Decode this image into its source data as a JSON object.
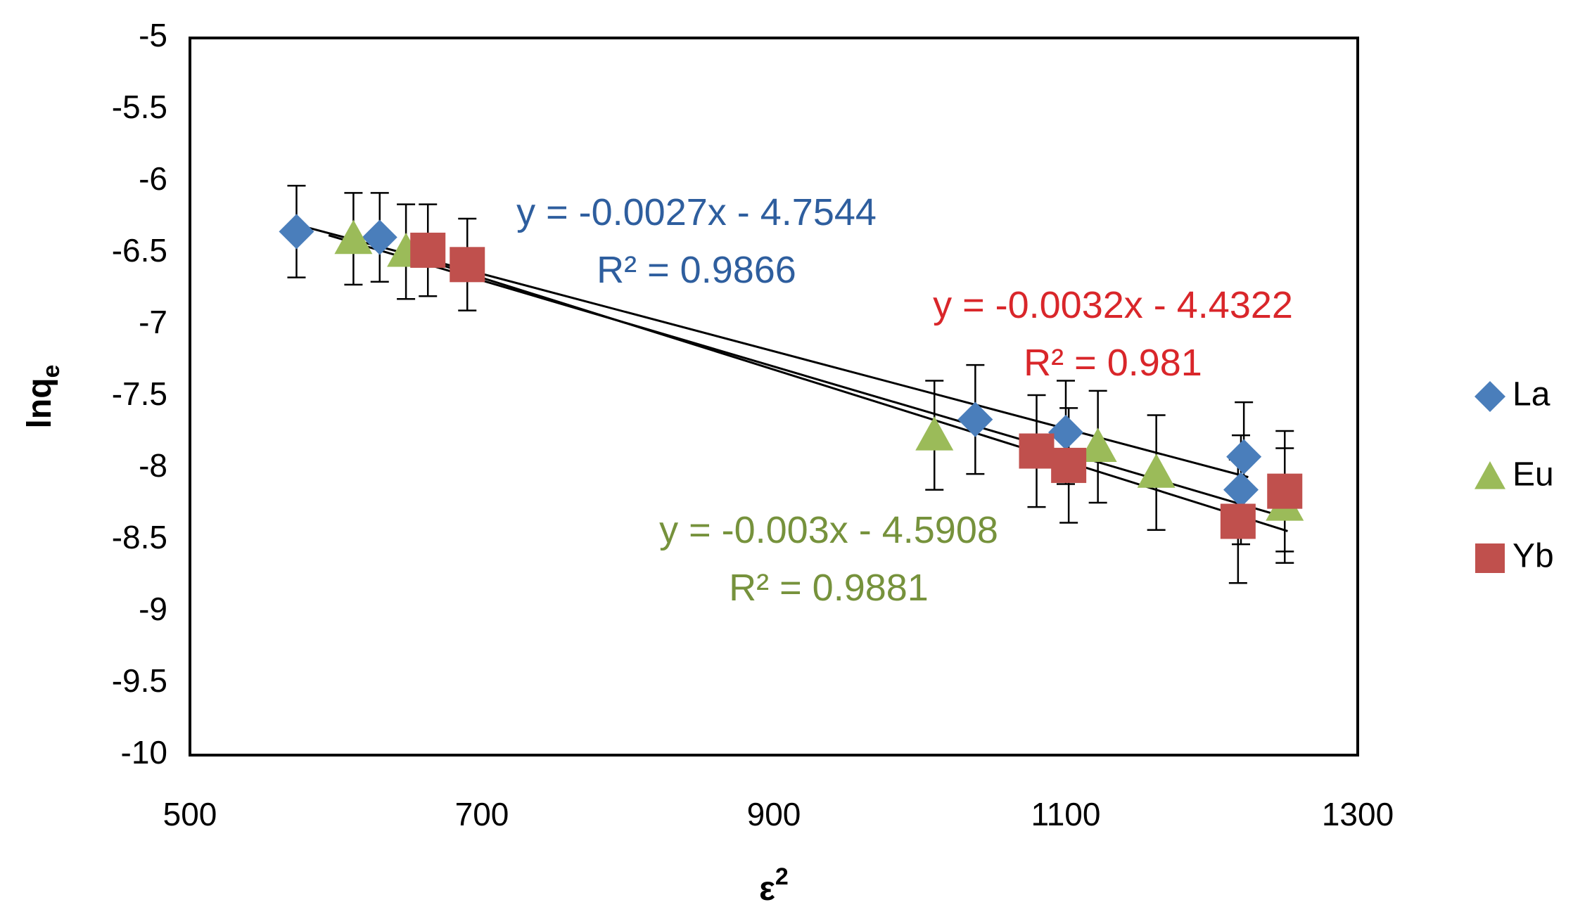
{
  "chart_data": {
    "type": "scatter",
    "title": "",
    "xlabel": "ε",
    "xlabel_sup": "2",
    "ylabel": "lnq",
    "ylabel_sub": "e",
    "xlim": [
      500,
      1300
    ],
    "ylim": [
      -10,
      -5
    ],
    "x_ticks": [
      500,
      700,
      900,
      1100,
      1300
    ],
    "y_ticks": [
      -5,
      -5.5,
      -6,
      -6.5,
      -7,
      -7.5,
      -8,
      -8.5,
      -9,
      -9.5,
      -10
    ],
    "x_tick_labels": [
      "500",
      "700",
      "900",
      "1100",
      "1300"
    ],
    "y_tick_labels": [
      "-5",
      "-5.5",
      "-6",
      "-6.5",
      "-7",
      "-7.5",
      "-8",
      "-8.5",
      "-9",
      "-9.5",
      "-10"
    ],
    "series": [
      {
        "name": "La",
        "color": "#4a7ebb",
        "marker": "diamond",
        "x": [
          573,
          630,
          1038,
          1100,
          1222,
          1220
        ],
        "y": [
          -6.35,
          -6.39,
          -7.66,
          -7.75,
          -7.92,
          -8.15
        ],
        "error": [
          0.32,
          0.31,
          0.38,
          0.36,
          0.38,
          0.38
        ],
        "fit": {
          "slope": -0.0027,
          "intercept": -4.7544,
          "x_range": [
            575,
            1225
          ]
        },
        "equation": "y = -0.0027x - 4.7544",
        "r2": "R² = 0.9866",
        "label_color": "#2e5e9e"
      },
      {
        "name": "Eu",
        "color": "#9bbb59",
        "marker": "triangle",
        "x": [
          612,
          648,
          1010,
          1122,
          1162,
          1250
        ],
        "y": [
          -6.4,
          -6.49,
          -7.77,
          -7.85,
          -8.03,
          -8.26
        ],
        "error": [
          0.32,
          0.33,
          0.38,
          0.39,
          0.4,
          0.4
        ],
        "fit": {
          "slope": -0.003,
          "intercept": -4.5908,
          "x_range": [
            595,
            1252
          ]
        },
        "equation": "y = -0.003x - 4.5908",
        "r2": "R² = 0.9881",
        "label_color": "#76923c"
      },
      {
        "name": "Yb",
        "color": "#c0504d",
        "marker": "square",
        "x": [
          663,
          690,
          1080,
          1102,
          1218,
          1250
        ],
        "y": [
          -6.48,
          -6.58,
          -7.88,
          -7.98,
          -8.37,
          -8.16
        ],
        "error": [
          0.32,
          0.32,
          0.39,
          0.4,
          0.43,
          0.42
        ],
        "fit": {
          "slope": -0.0032,
          "intercept": -4.4322,
          "x_range": [
            665,
            1252
          ]
        },
        "equation": "y = -0.0032x - 4.4322",
        "r2": "R² = 0.981",
        "label_color": "#d9262a"
      }
    ],
    "legend": {
      "position": "right",
      "entries": [
        "La",
        "Eu",
        "Yb"
      ]
    }
  }
}
